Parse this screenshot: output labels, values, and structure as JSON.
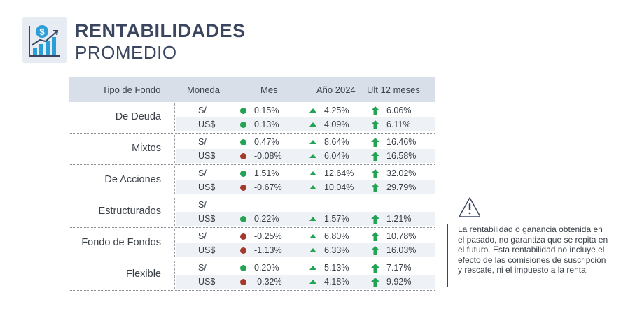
{
  "header": {
    "title_line1": "RENTABILIDADES",
    "title_line2": "PROMEDIO"
  },
  "columns": {
    "tipo": "Tipo de Fondo",
    "moneda": "Moneda",
    "mes": "Mes",
    "anio": "Año 2024",
    "ult12": "Ult 12 meses"
  },
  "funds": [
    {
      "name": "De Deuda",
      "rows": [
        {
          "currency": "S/",
          "mes": "0.15%",
          "mes_status": "positive",
          "anio": "4.25%",
          "ult12": "6.06%"
        },
        {
          "currency": "US$",
          "mes": "0.13%",
          "mes_status": "positive",
          "anio": "4.09%",
          "ult12": "6.11%"
        }
      ]
    },
    {
      "name": "Mixtos",
      "rows": [
        {
          "currency": "S/",
          "mes": "0.47%",
          "mes_status": "positive",
          "anio": "8.64%",
          "ult12": "16.46%"
        },
        {
          "currency": "US$",
          "mes": "-0.08%",
          "mes_status": "negative",
          "anio": "6.04%",
          "ult12": "16.58%"
        }
      ]
    },
    {
      "name": "De Acciones",
      "rows": [
        {
          "currency": "S/",
          "mes": "1.51%",
          "mes_status": "positive",
          "anio": "12.64%",
          "ult12": "32.02%"
        },
        {
          "currency": "US$",
          "mes": "-0.67%",
          "mes_status": "negative",
          "anio": "10.04%",
          "ult12": "29.79%"
        }
      ]
    },
    {
      "name": "Estructurados",
      "rows": [
        {
          "currency": "S/",
          "mes": "",
          "mes_status": "none",
          "anio": "",
          "ult12": ""
        },
        {
          "currency": "US$",
          "mes": "0.22%",
          "mes_status": "positive",
          "anio": "1.57%",
          "ult12": "1.21%"
        }
      ]
    },
    {
      "name": "Fondo de Fondos",
      "rows": [
        {
          "currency": "S/",
          "mes": "-0.25%",
          "mes_status": "negative",
          "anio": "6.80%",
          "ult12": "10.78%"
        },
        {
          "currency": "US$",
          "mes": "-1.13%",
          "mes_status": "negative",
          "anio": "6.33%",
          "ult12": "16.03%"
        }
      ]
    },
    {
      "name": "Flexible",
      "rows": [
        {
          "currency": "S/",
          "mes": "0.20%",
          "mes_status": "positive",
          "anio": "5.13%",
          "ult12": "7.17%"
        },
        {
          "currency": "US$",
          "mes": "-0.32%",
          "mes_status": "negative",
          "anio": "4.18%",
          "ult12": "9.92%"
        }
      ]
    }
  ],
  "disclaimer": "La rentabilidad o ganancia obtenida en el pasado, no garantiza que se repita en el futuro. Esta rentabilidad no incluye el efecto de las comisiones de suscripción y rescate, ni el impuesto a la renta.",
  "colors": {
    "positive": "#23a455",
    "negative": "#a5392e",
    "header_bg": "#d9dfe9",
    "title": "#3a4660"
  },
  "icons": {
    "logo": "money-growth-chart-icon",
    "warning": "warning-triangle-icon",
    "year_trend": "triangle-up-icon",
    "twelve_month_trend": "arrow-up-icon"
  }
}
